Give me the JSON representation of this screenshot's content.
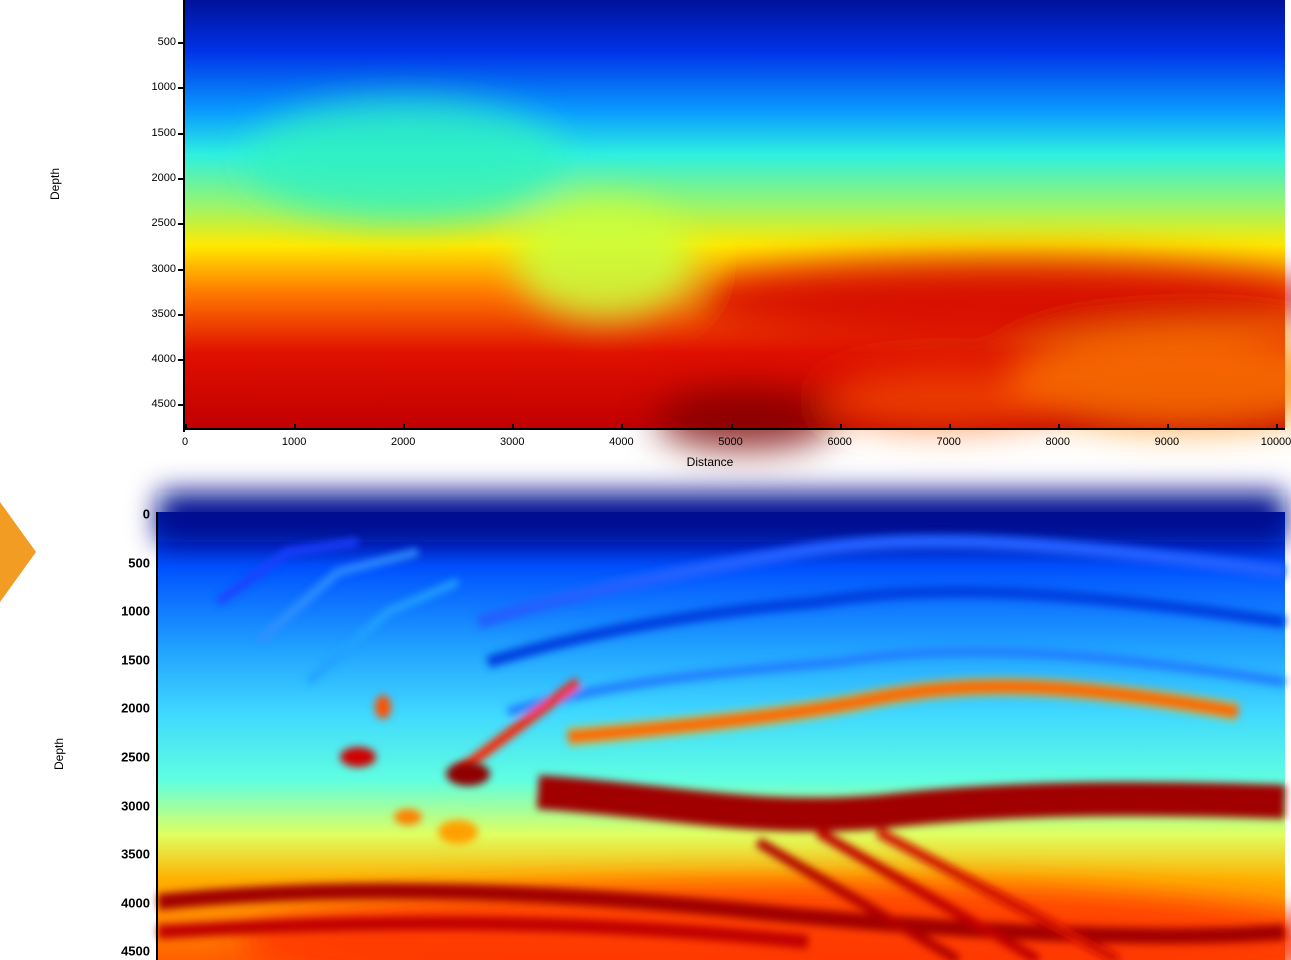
{
  "top_panel": {
    "ylabel": "Depth",
    "xlabel": "Distance",
    "y_ticks": [
      "500",
      "1000",
      "1500",
      "2000",
      "2500",
      "3000",
      "3500",
      "4000",
      "4500"
    ],
    "x_ticks": [
      "0",
      "1000",
      "2000",
      "3000",
      "4000",
      "5000",
      "6000",
      "7000",
      "8000",
      "9000",
      "10000"
    ]
  },
  "bottom_panel": {
    "title": "",
    "ylabel": "Depth",
    "y_ticks": [
      "0",
      "500",
      "1000",
      "1500",
      "2000",
      "2500",
      "3000",
      "3500",
      "4000",
      "4500"
    ]
  },
  "arrow_color": "#f39c23",
  "colormap": [
    "#00008f",
    "#0000ff",
    "#00ffff",
    "#ffff00",
    "#ff0000",
    "#800000"
  ]
}
